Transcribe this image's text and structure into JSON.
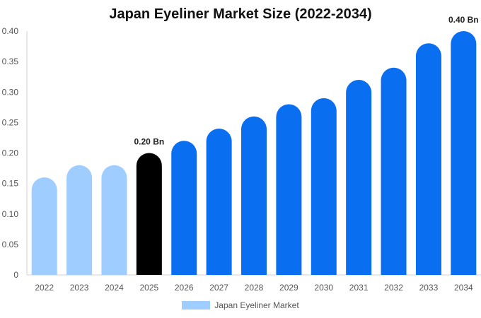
{
  "chart_data": {
    "type": "bar",
    "title": "Japan Eyeliner Market Size (2022-2034)",
    "categories": [
      "2022",
      "2023",
      "2024",
      "2025",
      "2026",
      "2027",
      "2028",
      "2029",
      "2030",
      "2031",
      "2032",
      "2033",
      "2034"
    ],
    "series": [
      {
        "name": "Japan Eyeliner Market",
        "values": [
          0.16,
          0.18,
          0.18,
          0.2,
          0.22,
          0.24,
          0.26,
          0.28,
          0.29,
          0.32,
          0.34,
          0.38,
          0.4
        ]
      }
    ],
    "ylim": [
      0,
      0.4
    ],
    "yticks": [
      "0",
      "0.05",
      "0.10",
      "0.15",
      "0.20",
      "0.25",
      "0.30",
      "0.35",
      "0.40"
    ],
    "data_labels": [
      {
        "index": 3,
        "text": "0.20 Bn"
      },
      {
        "index": 12,
        "text": "0.40 Bn"
      }
    ],
    "bar_colors": {
      "historical": "#a0cdff",
      "current": "#000000",
      "forecast": "#0a6ef0"
    },
    "legend_color": "#a0cdff",
    "legend_position": "bottom-center",
    "grid": false
  }
}
